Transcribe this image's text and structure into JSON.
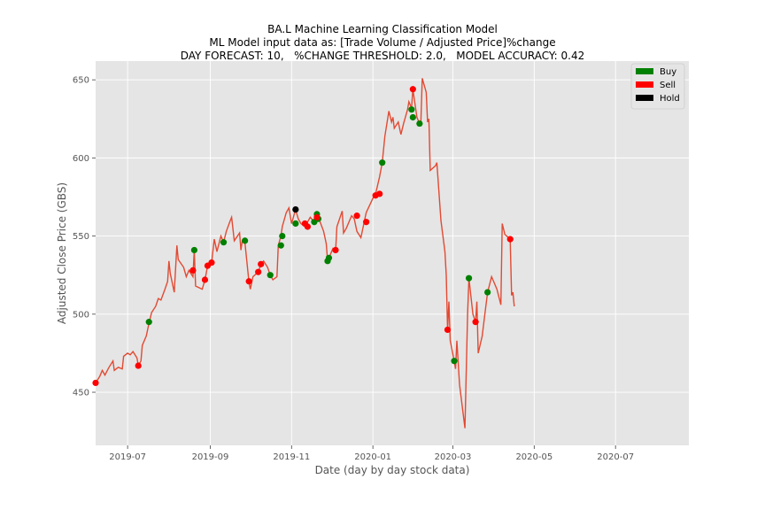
{
  "chart_data": {
    "type": "line",
    "title_lines": [
      "BA.L Machine Learning Classification Model",
      "ML Model input data as: [Trade Volume / Adjusted Price]%change",
      "DAY FORECAST: 10,   %CHANGE THRESHOLD: 2.0,   MODEL ACCURACY: 0.42"
    ],
    "xlabel": "Date (day by day stock data)",
    "ylabel": "Adjusted Close Price (GBS)",
    "xlim": [
      "2019-06-07",
      "2020-08-25"
    ],
    "ylim": [
      416,
      662
    ],
    "x_ticks": [
      "2019-07-01",
      "2019-09-01",
      "2019-11-01",
      "2020-01-01",
      "2020-03-01",
      "2020-05-01",
      "2020-07-01"
    ],
    "x_tick_labels": [
      "2019-07",
      "2019-09",
      "2019-11",
      "2020-01",
      "2020-03",
      "2020-05",
      "2020-07"
    ],
    "y_ticks": [
      450,
      500,
      550,
      600,
      650
    ],
    "grid": true,
    "legend_position": "top-right",
    "line_color": "#e24a33",
    "price_series": [
      [
        "2019-06-07",
        456
      ],
      [
        "2019-06-10",
        460
      ],
      [
        "2019-06-12",
        464
      ],
      [
        "2019-06-14",
        461
      ],
      [
        "2019-06-17",
        466
      ],
      [
        "2019-06-20",
        470
      ],
      [
        "2019-06-21",
        464
      ],
      [
        "2019-06-24",
        466
      ],
      [
        "2019-06-27",
        465
      ],
      [
        "2019-06-28",
        473
      ],
      [
        "2019-07-01",
        475
      ],
      [
        "2019-07-03",
        474
      ],
      [
        "2019-07-05",
        476
      ],
      [
        "2019-07-08",
        472
      ],
      [
        "2019-07-09",
        467
      ],
      [
        "2019-07-11",
        470
      ],
      [
        "2019-07-12",
        480
      ],
      [
        "2019-07-15",
        486
      ],
      [
        "2019-07-17",
        494
      ],
      [
        "2019-07-19",
        501
      ],
      [
        "2019-07-22",
        505
      ],
      [
        "2019-07-24",
        510
      ],
      [
        "2019-07-26",
        509
      ],
      [
        "2019-07-29",
        516
      ],
      [
        "2019-07-31",
        521
      ],
      [
        "2019-08-01",
        534
      ],
      [
        "2019-08-02",
        526
      ],
      [
        "2019-08-05",
        514
      ],
      [
        "2019-08-07",
        544
      ],
      [
        "2019-08-08",
        535
      ],
      [
        "2019-08-12",
        530
      ],
      [
        "2019-08-14",
        524
      ],
      [
        "2019-08-16",
        528
      ],
      [
        "2019-08-19",
        524
      ],
      [
        "2019-08-20",
        541
      ],
      [
        "2019-08-21",
        518
      ],
      [
        "2019-08-26",
        516
      ],
      [
        "2019-08-28",
        522
      ],
      [
        "2019-08-30",
        531
      ],
      [
        "2019-09-02",
        533
      ],
      [
        "2019-09-04",
        548
      ],
      [
        "2019-09-06",
        540
      ],
      [
        "2019-09-09",
        550
      ],
      [
        "2019-09-11",
        546
      ],
      [
        "2019-09-13",
        553
      ],
      [
        "2019-09-16",
        560
      ],
      [
        "2019-09-17",
        562
      ],
      [
        "2019-09-19",
        547
      ],
      [
        "2019-09-23",
        552
      ],
      [
        "2019-09-24",
        541
      ],
      [
        "2019-09-25",
        547
      ],
      [
        "2019-09-27",
        546
      ],
      [
        "2019-09-30",
        521
      ],
      [
        "2019-10-01",
        516
      ],
      [
        "2019-10-03",
        524
      ],
      [
        "2019-10-07",
        527
      ],
      [
        "2019-10-09",
        532
      ],
      [
        "2019-10-11",
        534
      ],
      [
        "2019-10-14",
        530
      ],
      [
        "2019-10-16",
        525
      ],
      [
        "2019-10-18",
        522
      ],
      [
        "2019-10-21",
        524
      ],
      [
        "2019-10-22",
        544
      ],
      [
        "2019-10-24",
        550
      ],
      [
        "2019-10-25",
        556
      ],
      [
        "2019-10-28",
        565
      ],
      [
        "2019-10-30",
        568
      ],
      [
        "2019-11-01",
        558
      ],
      [
        "2019-11-04",
        567
      ],
      [
        "2019-11-06",
        561
      ],
      [
        "2019-11-08",
        558
      ],
      [
        "2019-11-11",
        556
      ],
      [
        "2019-11-13",
        559
      ],
      [
        "2019-11-15",
        562
      ],
      [
        "2019-11-18",
        559
      ],
      [
        "2019-11-20",
        564
      ],
      [
        "2019-11-21",
        562
      ],
      [
        "2019-11-22",
        560
      ],
      [
        "2019-11-25",
        553
      ],
      [
        "2019-11-27",
        545
      ],
      [
        "2019-11-28",
        534
      ],
      [
        "2019-11-29",
        536
      ],
      [
        "2019-12-02",
        542
      ],
      [
        "2019-12-04",
        540
      ],
      [
        "2019-12-05",
        556
      ],
      [
        "2019-12-09",
        566
      ],
      [
        "2019-12-10",
        552
      ],
      [
        "2019-12-12",
        555
      ],
      [
        "2019-12-16",
        563
      ],
      [
        "2019-12-18",
        561
      ],
      [
        "2019-12-20",
        553
      ],
      [
        "2019-12-23",
        549
      ],
      [
        "2019-12-27",
        565
      ],
      [
        "2020-01-02",
        576
      ],
      [
        "2020-01-03",
        577
      ],
      [
        "2020-01-06",
        588
      ],
      [
        "2020-01-08",
        597
      ],
      [
        "2020-01-10",
        614
      ],
      [
        "2020-01-13",
        630
      ],
      [
        "2020-01-15",
        623
      ],
      [
        "2020-01-16",
        626
      ],
      [
        "2020-01-17",
        619
      ],
      [
        "2020-01-20",
        623
      ],
      [
        "2020-01-22",
        615
      ],
      [
        "2020-01-24",
        622
      ],
      [
        "2020-01-27",
        631
      ],
      [
        "2020-01-28",
        636
      ],
      [
        "2020-01-30",
        632
      ],
      [
        "2020-01-31",
        644
      ],
      [
        "2020-02-03",
        626
      ],
      [
        "2020-02-05",
        622
      ],
      [
        "2020-02-06",
        624
      ],
      [
        "2020-02-07",
        651
      ],
      [
        "2020-02-10",
        642
      ],
      [
        "2020-02-11",
        623
      ],
      [
        "2020-02-12",
        625
      ],
      [
        "2020-02-13",
        592
      ],
      [
        "2020-02-17",
        595
      ],
      [
        "2020-02-18",
        597
      ],
      [
        "2020-02-19",
        585
      ],
      [
        "2020-02-21",
        560
      ],
      [
        "2020-02-24",
        540
      ],
      [
        "2020-02-25",
        525
      ],
      [
        "2020-02-26",
        490
      ],
      [
        "2020-02-27",
        508
      ],
      [
        "2020-02-28",
        483
      ],
      [
        "2020-03-02",
        470
      ],
      [
        "2020-03-03",
        465
      ],
      [
        "2020-03-04",
        483
      ],
      [
        "2020-03-06",
        455
      ],
      [
        "2020-03-10",
        427
      ],
      [
        "2020-03-12",
        500
      ],
      [
        "2020-03-13",
        523
      ],
      [
        "2020-03-16",
        500
      ],
      [
        "2020-03-18",
        495
      ],
      [
        "2020-03-19",
        508
      ],
      [
        "2020-03-20",
        475
      ],
      [
        "2020-03-23",
        486
      ],
      [
        "2020-03-25",
        500
      ],
      [
        "2020-03-27",
        514
      ],
      [
        "2020-03-30",
        524
      ],
      [
        "2020-04-01",
        520
      ],
      [
        "2020-04-03",
        516
      ],
      [
        "2020-04-06",
        506
      ],
      [
        "2020-04-07",
        558
      ],
      [
        "2020-04-09",
        551
      ],
      [
        "2020-04-13",
        548
      ],
      [
        "2020-04-14",
        512
      ],
      [
        "2020-04-15",
        514
      ],
      [
        "2020-04-16",
        505
      ]
    ],
    "series": [
      {
        "name": "Buy",
        "color": "#008000",
        "points": [
          [
            "2019-07-17",
            495
          ],
          [
            "2019-08-20",
            541
          ],
          [
            "2019-09-11",
            546
          ],
          [
            "2019-09-27",
            547
          ],
          [
            "2019-10-16",
            525
          ],
          [
            "2019-10-24",
            544
          ],
          [
            "2019-10-25",
            550
          ],
          [
            "2019-11-04",
            558
          ],
          [
            "2019-11-18",
            559
          ],
          [
            "2019-11-20",
            564
          ],
          [
            "2019-11-21",
            561
          ],
          [
            "2019-11-28",
            534
          ],
          [
            "2019-11-29",
            536
          ],
          [
            "2020-01-08",
            597
          ],
          [
            "2020-01-30",
            631
          ],
          [
            "2020-01-31",
            626
          ],
          [
            "2020-02-05",
            622
          ],
          [
            "2020-03-02",
            470
          ],
          [
            "2020-03-13",
            523
          ],
          [
            "2020-03-27",
            514
          ]
        ]
      },
      {
        "name": "Sell",
        "color": "#ff0000",
        "points": [
          [
            "2019-06-07",
            456
          ],
          [
            "2019-07-09",
            467
          ],
          [
            "2019-08-19",
            528
          ],
          [
            "2019-08-28",
            522
          ],
          [
            "2019-08-30",
            531
          ],
          [
            "2019-09-02",
            533
          ],
          [
            "2019-09-30",
            521
          ],
          [
            "2019-10-07",
            527
          ],
          [
            "2019-10-09",
            532
          ],
          [
            "2019-11-11",
            558
          ],
          [
            "2019-11-13",
            556
          ],
          [
            "2019-11-20",
            562
          ],
          [
            "2019-12-04",
            541
          ],
          [
            "2019-12-20",
            563
          ],
          [
            "2019-12-27",
            559
          ],
          [
            "2020-01-03",
            576
          ],
          [
            "2020-01-06",
            577
          ],
          [
            "2020-01-31",
            644
          ],
          [
            "2020-02-26",
            490
          ],
          [
            "2020-03-18",
            495
          ],
          [
            "2020-04-13",
            548
          ]
        ]
      },
      {
        "name": "Hold",
        "color": "#000000",
        "points": [
          [
            "2019-11-04",
            567
          ]
        ]
      }
    ]
  }
}
